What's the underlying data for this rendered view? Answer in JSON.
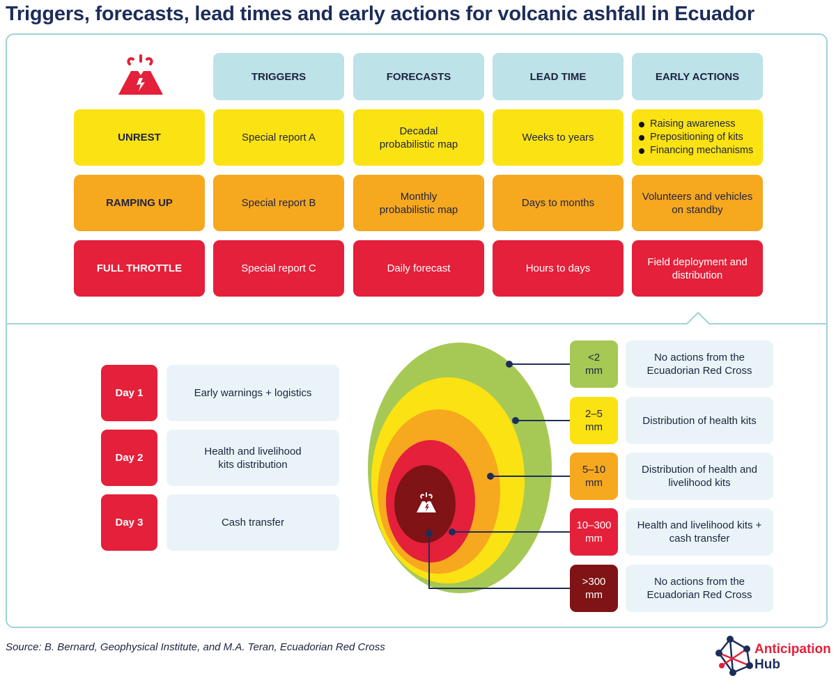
{
  "title": "Triggers, forecasts, lead times and early actions for volcanic ashfall in Ecuador",
  "table": {
    "headers": [
      "TRIGGERS",
      "FORECASTS",
      "LEAD TIME",
      "EARLY ACTIONS"
    ],
    "rows": [
      {
        "label": "UNREST",
        "trigger": "Special report A",
        "forecast": "Decadal probabilistic map",
        "lead_time": "Weeks to years",
        "actions": [
          "Raising awareness",
          "Prepositioning of kits",
          "Financing mechanisms"
        ],
        "color": "#fbe212"
      },
      {
        "label": "RAMPING UP",
        "trigger": "Special report B",
        "forecast": "Monthly probabilistic map",
        "lead_time": "Days to months",
        "action": "Volunteers and vehicles on standby",
        "color": "#f6a81f"
      },
      {
        "label": "FULL THROTTLE",
        "trigger": "Special report C",
        "forecast": "Daily forecast",
        "lead_time": "Hours to days",
        "action": "Field deployment and distribution",
        "color": "#e4203a"
      }
    ]
  },
  "days": [
    {
      "day": "Day 1",
      "text": "Early warnings + logistics"
    },
    {
      "day": "Day 2",
      "text": "Health and livelihood kits distribution"
    },
    {
      "day": "Day 3",
      "text": "Cash transfer"
    }
  ],
  "ashfall_zones": [
    {
      "range": "<2 mm",
      "action": "No actions from the Ecuadorian Red Cross",
      "color": "#a6c955"
    },
    {
      "range": "2–5 mm",
      "action": "Distribution of health kits",
      "color": "#fbe212"
    },
    {
      "range": "5–10 mm",
      "action": "Distribution of health and livelihood kits",
      "color": "#f6a81f"
    },
    {
      "range": "10–300 mm",
      "action": "Health and livelihood kits + cash transfer",
      "color": "#e4203a"
    },
    {
      "range": ">300 mm",
      "action": "No actions from the Ecuadorian Red Cross",
      "color": "#7f1315"
    }
  ],
  "source": "Source: B. Bernard, Geophysical Institute, and M.A. Teran, Ecuadorian Red Cross",
  "logo": {
    "line1": "Anticipation",
    "line2": "Hub"
  },
  "icons": [
    "volcano-icon",
    "volcano-small-icon",
    "anticipation-hub-logo-icon"
  ]
}
